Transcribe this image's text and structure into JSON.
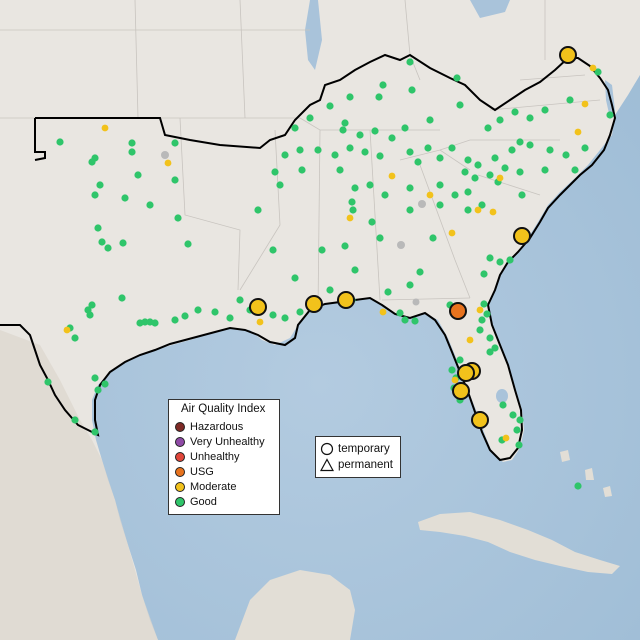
{
  "legend": {
    "title": "Air Quality Index",
    "categories": [
      {
        "label": "Hazardous",
        "color": "#7e2a26"
      },
      {
        "label": "Very Unhealthy",
        "color": "#8f4aa6"
      },
      {
        "label": "Unhealthy",
        "color": "#e0453a"
      },
      {
        "label": "USG",
        "color": "#e8731e"
      },
      {
        "label": "Moderate",
        "color": "#f2c21b"
      },
      {
        "label": "Good",
        "color": "#2fc56a"
      }
    ]
  },
  "type_legend": {
    "temporary": "temporary",
    "permanent": "permanent"
  },
  "colors": {
    "land": "#e9e6e1",
    "water": "#a9c3da",
    "border": "#000000",
    "state_lines": "#c8c4bf",
    "no_data": "#b9b9b9"
  },
  "large_monitors_aqi": [
    "Moderate",
    "Moderate",
    "Moderate",
    "Moderate",
    "Moderate",
    "USG",
    "Moderate",
    "Moderate",
    "Moderate",
    "Moderate"
  ]
}
